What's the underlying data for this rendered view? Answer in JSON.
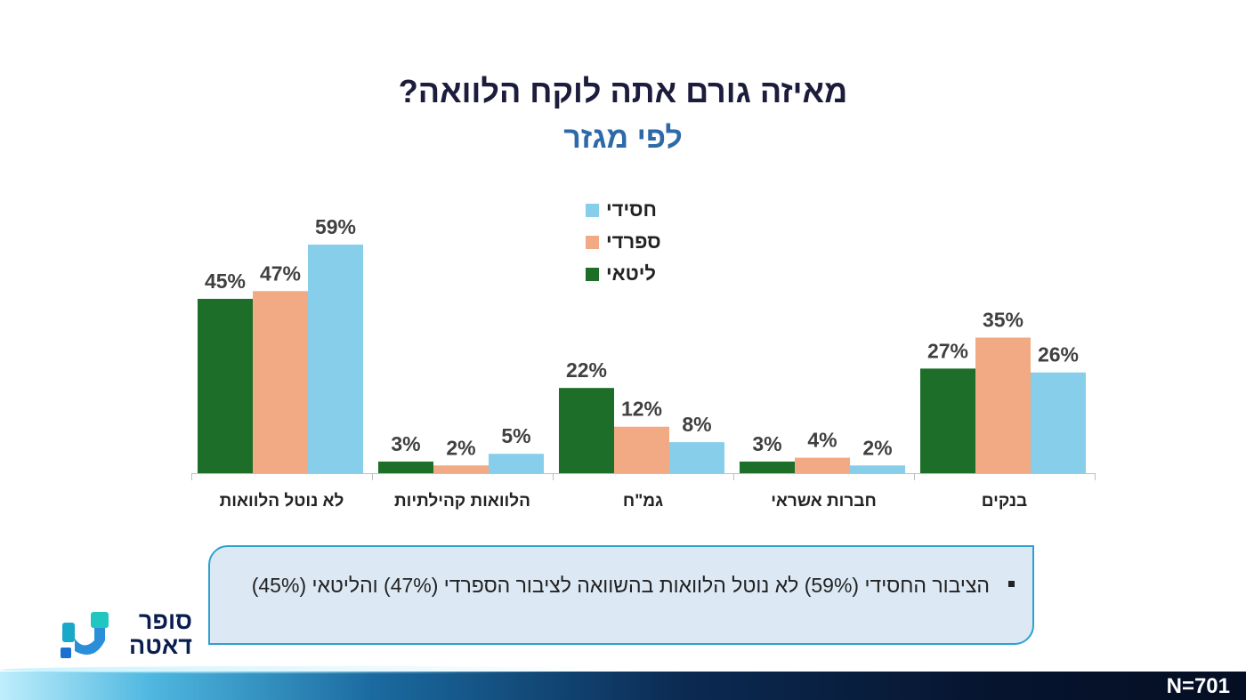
{
  "header": {
    "title": "מאיזה גורם אתה לוקח הלוואה?",
    "subtitle": "לפי מגזר"
  },
  "chart_data": {
    "type": "bar",
    "categories": [
      "לא נוטל הלוואות",
      "הלוואות קהילתיות",
      "גמ\"ח",
      "חברות אשראי",
      "בנקים"
    ],
    "series": [
      {
        "name": "ליטאי",
        "color": "#1d6e28",
        "values": [
          45,
          3,
          22,
          3,
          27
        ]
      },
      {
        "name": "ספרדי",
        "color": "#f2aa84",
        "values": [
          47,
          2,
          12,
          4,
          35
        ]
      },
      {
        "name": "חסידי",
        "color": "#87ceeb",
        "values": [
          59,
          5,
          8,
          2,
          26
        ]
      }
    ],
    "value_suffix": "%",
    "ylim": [
      0,
      65
    ],
    "grid": false,
    "legend_position": "top-center",
    "legend_order": [
      "חסידי",
      "ספרדי",
      "ליטאי"
    ]
  },
  "insight": {
    "text": "הציבור החסידי (59%) לא נוטל הלוואות בהשוואה לציבור הספרדי (47%) והליטאי (45%)"
  },
  "logo": {
    "line1": "סופר",
    "line2": "דאטה"
  },
  "footer": {
    "sample": "N=701"
  }
}
